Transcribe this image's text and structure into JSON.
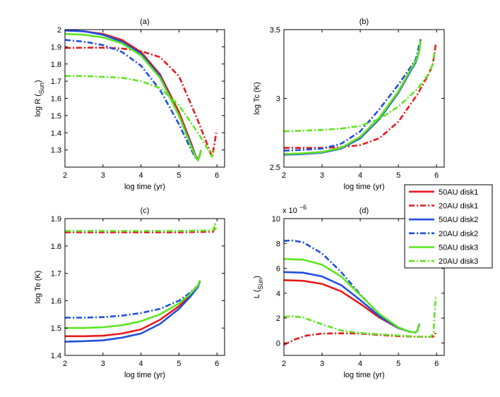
{
  "chart_data": [
    {
      "type": "line",
      "title": "(a)",
      "xlabel": "log time (yr)",
      "ylabel": "log R",
      "ylabel_sub": "Sun",
      "xlim": [
        2,
        6.2
      ],
      "ylim": [
        1.2,
        2.0
      ],
      "xticks": [
        2,
        3,
        4,
        5,
        6
      ],
      "xtick_labels": [
        "2",
        "3",
        "4",
        "5",
        "6"
      ],
      "yticks": [
        1.3,
        1.4,
        1.5,
        1.6,
        1.7,
        1.8,
        1.9,
        2.0
      ],
      "ytick_labels": [
        "1.3",
        "1.4",
        "1.5",
        "1.6",
        "1.7",
        "1.8",
        "1.9",
        "2"
      ],
      "series": [
        {
          "name": "50AU disk1",
          "style": "solid",
          "color": "#e41a1c",
          "x": [
            2.0,
            2.5,
            3.0,
            3.5,
            4.0,
            4.5,
            5.0,
            5.3,
            5.45,
            5.5,
            5.55,
            5.58
          ],
          "y": [
            1.995,
            1.99,
            1.975,
            1.94,
            1.87,
            1.74,
            1.52,
            1.35,
            1.26,
            1.245,
            1.27,
            1.3
          ]
        },
        {
          "name": "20AU disk1",
          "style": "dashdot",
          "color": "#e41a1c",
          "x": [
            2.0,
            2.5,
            3.0,
            3.5,
            4.0,
            4.5,
            5.0,
            5.5,
            5.8,
            5.87,
            5.93,
            5.98
          ],
          "y": [
            1.893,
            1.895,
            1.895,
            1.89,
            1.875,
            1.84,
            1.73,
            1.47,
            1.3,
            1.26,
            1.33,
            1.4
          ]
        },
        {
          "name": "50AU disk2",
          "style": "solid",
          "color": "#1f4fe0",
          "x": [
            2.0,
            2.5,
            3.0,
            3.5,
            4.0,
            4.5,
            5.0,
            5.3,
            5.45,
            5.5,
            5.55,
            5.58
          ],
          "y": [
            1.995,
            1.99,
            1.97,
            1.93,
            1.86,
            1.73,
            1.5,
            1.34,
            1.255,
            1.24,
            1.27,
            1.3
          ]
        },
        {
          "name": "20AU disk2",
          "style": "dashdot",
          "color": "#1f4fe0",
          "x": [
            2.0,
            2.5,
            3.0,
            3.5,
            4.0,
            4.5,
            5.0,
            5.3,
            5.45,
            5.5,
            5.55
          ],
          "y": [
            1.94,
            1.93,
            1.91,
            1.87,
            1.79,
            1.65,
            1.45,
            1.31,
            1.25,
            1.245,
            1.27
          ]
        },
        {
          "name": "50AU disk3",
          "style": "solid",
          "color": "#5be61e",
          "x": [
            2.0,
            2.5,
            3.0,
            3.5,
            4.0,
            4.5,
            5.0,
            5.3,
            5.45,
            5.5,
            5.55,
            5.58
          ],
          "y": [
            1.975,
            1.97,
            1.955,
            1.92,
            1.85,
            1.72,
            1.5,
            1.33,
            1.255,
            1.24,
            1.27,
            1.3
          ]
        },
        {
          "name": "20AU disk3",
          "style": "dashdot",
          "color": "#5be61e",
          "x": [
            2.0,
            2.5,
            3.0,
            3.5,
            4.0,
            4.5,
            5.0,
            5.5,
            5.8,
            5.87,
            5.93
          ],
          "y": [
            1.73,
            1.73,
            1.725,
            1.72,
            1.7,
            1.66,
            1.56,
            1.4,
            1.29,
            1.26,
            1.3
          ]
        }
      ]
    },
    {
      "type": "line",
      "title": "(b)",
      "xlabel": "log time (yr)",
      "ylabel": "log Tc (K)",
      "xlim": [
        2,
        6.2
      ],
      "ylim": [
        2.5,
        3.5
      ],
      "xticks": [
        2,
        3,
        4,
        5,
        6
      ],
      "xtick_labels": [
        "2",
        "3",
        "4",
        "5",
        "6"
      ],
      "yticks": [
        2.5,
        3.0,
        3.5
      ],
      "ytick_labels": [
        "2.5",
        "3",
        "3.5"
      ],
      "series": [
        {
          "name": "50AU disk1",
          "style": "solid",
          "color": "#e41a1c",
          "x": [
            2.0,
            2.5,
            3.0,
            3.5,
            4.0,
            4.5,
            5.0,
            5.3,
            5.45,
            5.5,
            5.55,
            5.58
          ],
          "y": [
            2.595,
            2.6,
            2.61,
            2.64,
            2.72,
            2.86,
            3.05,
            3.2,
            3.27,
            3.3,
            3.35,
            3.42
          ]
        },
        {
          "name": "20AU disk1",
          "style": "dashdot",
          "color": "#e41a1c",
          "x": [
            2.0,
            2.5,
            3.0,
            3.5,
            4.0,
            4.5,
            5.0,
            5.5,
            5.8,
            5.9,
            5.95,
            5.98
          ],
          "y": [
            2.64,
            2.64,
            2.64,
            2.645,
            2.66,
            2.71,
            2.83,
            3.03,
            3.18,
            3.25,
            3.33,
            3.4
          ]
        },
        {
          "name": "50AU disk2",
          "style": "solid",
          "color": "#1f4fe0",
          "x": [
            2.0,
            2.5,
            3.0,
            3.5,
            4.0,
            4.5,
            5.0,
            5.3,
            5.45,
            5.5,
            5.55,
            5.58
          ],
          "y": [
            2.59,
            2.595,
            2.605,
            2.635,
            2.71,
            2.85,
            3.04,
            3.19,
            3.26,
            3.3,
            3.35,
            3.43
          ]
        },
        {
          "name": "20AU disk2",
          "style": "dashdot",
          "color": "#1f4fe0",
          "x": [
            2.0,
            2.5,
            3.0,
            3.5,
            4.0,
            4.5,
            5.0,
            5.3,
            5.45,
            5.5,
            5.55
          ],
          "y": [
            2.62,
            2.625,
            2.635,
            2.67,
            2.76,
            2.92,
            3.1,
            3.22,
            3.28,
            3.33,
            3.4
          ]
        },
        {
          "name": "50AU disk3",
          "style": "solid",
          "color": "#5be61e",
          "x": [
            2.0,
            2.5,
            3.0,
            3.5,
            4.0,
            4.5,
            5.0,
            5.3,
            5.45,
            5.5,
            5.55,
            5.58
          ],
          "y": [
            2.595,
            2.6,
            2.61,
            2.64,
            2.72,
            2.86,
            3.05,
            3.2,
            3.27,
            3.3,
            3.35,
            3.42
          ]
        },
        {
          "name": "20AU disk3",
          "style": "dashdot",
          "color": "#5be61e",
          "x": [
            2.0,
            2.5,
            3.0,
            3.5,
            4.0,
            4.5,
            5.0,
            5.5,
            5.8,
            5.9,
            5.95
          ],
          "y": [
            2.76,
            2.765,
            2.77,
            2.78,
            2.8,
            2.85,
            2.94,
            3.07,
            3.18,
            3.25,
            3.35
          ]
        }
      ]
    },
    {
      "type": "line",
      "title": "(c)",
      "xlabel": "log time (yr)",
      "ylabel": "log Te (K)",
      "xlim": [
        2,
        6.2
      ],
      "ylim": [
        1.4,
        1.9
      ],
      "xticks": [
        2,
        3,
        4,
        5,
        6
      ],
      "xtick_labels": [
        "2",
        "3",
        "4",
        "5",
        "6"
      ],
      "yticks": [
        1.4,
        1.5,
        1.6,
        1.7,
        1.8,
        1.9
      ],
      "ytick_labels": [
        "1.4",
        "1.5",
        "1.6",
        "1.7",
        "1.8",
        "1.9"
      ],
      "series": [
        {
          "name": "50AU disk1",
          "style": "solid",
          "color": "#e41a1c",
          "x": [
            2.0,
            2.5,
            3.0,
            3.5,
            4.0,
            4.5,
            5.0,
            5.3,
            5.5,
            5.55
          ],
          "y": [
            1.47,
            1.47,
            1.472,
            1.48,
            1.495,
            1.53,
            1.58,
            1.62,
            1.65,
            1.67
          ]
        },
        {
          "name": "20AU disk1",
          "style": "dashdot",
          "color": "#e41a1c",
          "x": [
            2.0,
            3.0,
            4.0,
            5.0,
            5.5,
            5.9,
            5.95,
            5.98
          ],
          "y": [
            1.85,
            1.85,
            1.85,
            1.85,
            1.851,
            1.852,
            1.87,
            1.855
          ]
        },
        {
          "name": "50AU disk2",
          "style": "solid",
          "color": "#1f4fe0",
          "x": [
            2.0,
            2.5,
            3.0,
            3.5,
            4.0,
            4.5,
            5.0,
            5.3,
            5.5,
            5.55
          ],
          "y": [
            1.45,
            1.452,
            1.455,
            1.465,
            1.48,
            1.515,
            1.57,
            1.615,
            1.65,
            1.67
          ]
        },
        {
          "name": "20AU disk2",
          "style": "dashdot",
          "color": "#1f4fe0",
          "x": [
            2.0,
            2.5,
            3.0,
            3.5,
            4.0,
            4.5,
            5.0,
            5.3,
            5.5,
            5.55
          ],
          "y": [
            1.538,
            1.538,
            1.54,
            1.545,
            1.555,
            1.57,
            1.6,
            1.63,
            1.655,
            1.67
          ]
        },
        {
          "name": "50AU disk3",
          "style": "solid",
          "color": "#5be61e",
          "x": [
            2.0,
            2.5,
            3.0,
            3.5,
            4.0,
            4.5,
            5.0,
            5.3,
            5.5,
            5.55
          ],
          "y": [
            1.5,
            1.5,
            1.503,
            1.51,
            1.525,
            1.55,
            1.59,
            1.625,
            1.655,
            1.675
          ]
        },
        {
          "name": "20AU disk3",
          "style": "dashdot",
          "color": "#5be61e",
          "x": [
            2.0,
            3.0,
            4.0,
            5.0,
            5.5,
            5.9,
            5.95,
            5.97
          ],
          "y": [
            1.855,
            1.855,
            1.855,
            1.855,
            1.856,
            1.857,
            1.88,
            1.86
          ]
        }
      ]
    },
    {
      "type": "line",
      "title": "(d)",
      "xlabel": "log time (yr)",
      "ylabel": "L",
      "ylabel_sub": "Sun",
      "exponent_label": "x 10",
      "exponent_power": "−6",
      "xlim": [
        2,
        6.2
      ],
      "ylim": [
        -1,
        10
      ],
      "xticks": [
        2,
        3,
        4,
        5,
        6
      ],
      "xtick_labels": [
        "2",
        "3",
        "4",
        "5",
        "6"
      ],
      "yticks": [
        0,
        2,
        4,
        6,
        8,
        10
      ],
      "ytick_labels": [
        "0",
        "2",
        "4",
        "6",
        "8",
        "10"
      ],
      "series": [
        {
          "name": "50AU disk1",
          "style": "solid",
          "color": "#e41a1c",
          "x": [
            2.0,
            2.5,
            3.0,
            3.5,
            4.0,
            4.5,
            5.0,
            5.3,
            5.45,
            5.5,
            5.55
          ],
          "y": [
            5.05,
            5.0,
            4.75,
            4.15,
            3.15,
            2.05,
            1.2,
            0.9,
            0.85,
            1.0,
            1.55
          ]
        },
        {
          "name": "20AU disk1",
          "style": "dashdot",
          "color": "#e41a1c",
          "x": [
            2.0,
            2.3,
            2.6,
            3.0,
            3.5,
            4.0,
            4.5,
            5.0,
            5.5,
            5.9,
            5.95,
            5.98
          ],
          "y": [
            -0.15,
            0.3,
            0.6,
            0.75,
            0.78,
            0.75,
            0.65,
            0.55,
            0.5,
            0.5,
            0.6,
            0.9
          ]
        },
        {
          "name": "50AU disk2",
          "style": "solid",
          "color": "#1f4fe0",
          "x": [
            2.0,
            2.5,
            3.0,
            3.5,
            4.0,
            4.5,
            5.0,
            5.3,
            5.45,
            5.5,
            5.55
          ],
          "y": [
            5.7,
            5.65,
            5.35,
            4.65,
            3.45,
            2.15,
            1.2,
            0.9,
            0.85,
            1.0,
            1.55
          ]
        },
        {
          "name": "20AU disk2",
          "style": "dashdot",
          "color": "#1f4fe0",
          "x": [
            2.0,
            2.2,
            2.5,
            3.0,
            3.5,
            4.0,
            4.5,
            5.0,
            5.3,
            5.45,
            5.5,
            5.55
          ],
          "y": [
            8.2,
            8.25,
            8.1,
            7.2,
            5.7,
            3.9,
            2.3,
            1.25,
            0.9,
            0.85,
            1.0,
            1.5
          ]
        },
        {
          "name": "50AU disk3",
          "style": "solid",
          "color": "#5be61e",
          "x": [
            2.0,
            2.5,
            3.0,
            3.5,
            4.0,
            4.5,
            5.0,
            5.3,
            5.45,
            5.5,
            5.55
          ],
          "y": [
            6.75,
            6.7,
            6.3,
            5.35,
            3.85,
            2.35,
            1.25,
            0.9,
            0.85,
            1.0,
            1.55
          ]
        },
        {
          "name": "20AU disk3",
          "style": "dashdot",
          "color": "#5be61e",
          "x": [
            2.0,
            2.2,
            2.5,
            3.0,
            3.5,
            4.0,
            4.5,
            5.0,
            5.5,
            5.85,
            5.92,
            5.95,
            5.98
          ],
          "y": [
            2.1,
            2.15,
            2.05,
            1.5,
            1.0,
            0.8,
            0.7,
            0.6,
            0.5,
            0.5,
            0.8,
            2.5,
            3.8
          ]
        }
      ]
    }
  ],
  "legend": {
    "placement": "top-right",
    "entries": [
      {
        "label": "50AU disk1",
        "style": "solid",
        "color": "#e41a1c"
      },
      {
        "label": "20AU disk1",
        "style": "dashdot",
        "color": "#e41a1c"
      },
      {
        "label": "50AU disk2",
        "style": "solid",
        "color": "#1f4fe0"
      },
      {
        "label": "20AU disk2",
        "style": "dashdot",
        "color": "#1f4fe0"
      },
      {
        "label": "50AU disk3",
        "style": "solid",
        "color": "#5be61e"
      },
      {
        "label": "20AU disk3",
        "style": "dashdot",
        "color": "#5be61e"
      }
    ]
  }
}
